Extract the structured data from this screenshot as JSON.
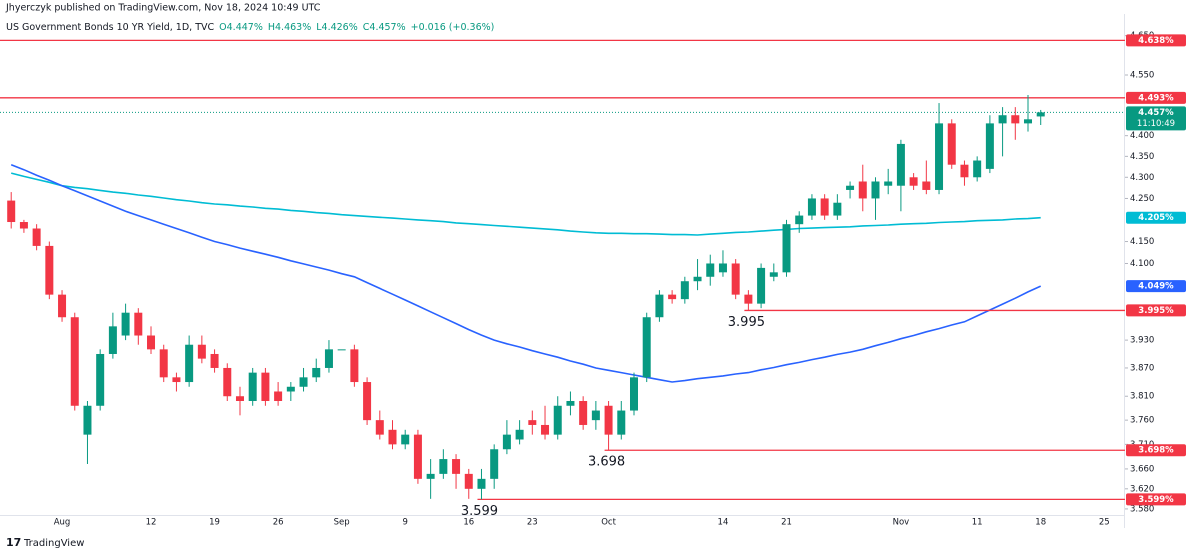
{
  "header": {
    "publisher": "Jhyerczyk published on TradingView.com, Nov 18, 2024 10:49 UTC",
    "symbol": "US Government Bonds 10 YR Yield, 1D, TVC",
    "ohlc_text": [
      "O4.447%",
      "H4.463%",
      "L4.426%",
      "C4.457%",
      "+0.016 (+0.36%)"
    ]
  },
  "footer": {
    "brand": "TradingView"
  },
  "chart_data": {
    "type": "candlestick",
    "log_scale": true,
    "grid": false,
    "up_color": "#089981",
    "down_color": "#f23645",
    "categories": [
      null,
      null,
      null,
      null,
      "Aug",
      null,
      null,
      null,
      null,
      null,
      null,
      "12",
      null,
      null,
      null,
      null,
      "19",
      null,
      null,
      null,
      null,
      "26",
      null,
      null,
      null,
      null,
      "Sep",
      null,
      null,
      null,
      null,
      "9",
      null,
      null,
      null,
      null,
      "16",
      null,
      null,
      null,
      null,
      "23",
      null,
      null,
      null,
      null,
      null,
      "Oct",
      null,
      null,
      null,
      null,
      null,
      null,
      null,
      null,
      "14",
      null,
      null,
      null,
      null,
      "21",
      null,
      null,
      null,
      null,
      null,
      null,
      null,
      null,
      "Nov",
      null,
      null,
      null,
      null,
      null,
      "11",
      null,
      null,
      null,
      null,
      "18",
      null,
      null,
      null,
      null,
      "25"
    ],
    "open": [
      4.245,
      4.195,
      4.18,
      4.14,
      4.03,
      3.98,
      3.73,
      3.79,
      3.9,
      3.94,
      3.99,
      3.94,
      3.91,
      3.85,
      3.84,
      3.92,
      3.9,
      3.87,
      3.81,
      3.8,
      3.86,
      3.82,
      3.82,
      3.83,
      3.85,
      3.87,
      3.91,
      3.91,
      3.84,
      3.76,
      3.74,
      3.71,
      3.73,
      3.64,
      3.65,
      3.68,
      3.65,
      3.62,
      3.64,
      3.7,
      3.72,
      3.76,
      3.75,
      3.73,
      3.79,
      3.8,
      3.76,
      3.79,
      3.73,
      3.78,
      3.85,
      3.98,
      4.03,
      4.02,
      4.06,
      4.07,
      4.08,
      4.1,
      4.03,
      4.01,
      4.07,
      4.08,
      4.19,
      4.21,
      4.25,
      4.21,
      4.27,
      4.29,
      4.25,
      4.28,
      4.28,
      4.3,
      4.29,
      4.27,
      4.43,
      4.33,
      4.3,
      4.32,
      4.43,
      4.45,
      4.43,
      4.447,
      null,
      null,
      null,
      null,
      null
    ],
    "high": [
      4.265,
      4.2,
      4.19,
      4.15,
      4.04,
      3.99,
      3.8,
      3.91,
      3.99,
      4.01,
      4.0,
      3.96,
      3.92,
      3.86,
      3.94,
      3.94,
      3.91,
      3.88,
      3.83,
      3.87,
      3.87,
      3.84,
      3.84,
      3.87,
      3.89,
      3.93,
      3.91,
      3.92,
      3.85,
      3.78,
      3.76,
      3.74,
      3.74,
      3.68,
      3.7,
      3.69,
      3.66,
      3.66,
      3.71,
      3.76,
      3.76,
      3.78,
      3.79,
      3.81,
      3.82,
      3.81,
      3.8,
      3.8,
      3.8,
      3.86,
      3.99,
      4.04,
      4.04,
      4.07,
      4.11,
      4.12,
      4.13,
      4.11,
      4.04,
      4.1,
      4.1,
      4.2,
      4.22,
      4.26,
      4.26,
      4.26,
      4.29,
      4.33,
      4.3,
      4.32,
      4.39,
      4.31,
      4.34,
      4.48,
      4.44,
      4.34,
      4.35,
      4.45,
      4.47,
      4.47,
      4.5,
      4.463,
      null,
      null,
      null,
      null,
      null
    ],
    "low": [
      4.18,
      4.17,
      4.13,
      4.02,
      3.97,
      3.78,
      3.67,
      3.78,
      3.89,
      3.93,
      3.92,
      3.9,
      3.84,
      3.82,
      3.83,
      3.88,
      3.86,
      3.8,
      3.77,
      3.79,
      3.79,
      3.79,
      3.8,
      3.82,
      3.84,
      3.86,
      3.91,
      3.83,
      3.75,
      3.72,
      3.7,
      3.7,
      3.63,
      3.6,
      3.64,
      3.62,
      3.6,
      3.599,
      3.62,
      3.69,
      3.71,
      3.73,
      3.72,
      3.72,
      3.77,
      3.74,
      3.74,
      3.698,
      3.72,
      3.77,
      3.84,
      3.97,
      4.01,
      4.01,
      4.04,
      4.05,
      4.07,
      4.02,
      3.995,
      4.0,
      4.06,
      4.07,
      4.17,
      4.2,
      4.2,
      4.2,
      4.25,
      4.22,
      4.2,
      4.26,
      4.22,
      4.27,
      4.26,
      4.26,
      4.32,
      4.28,
      4.29,
      4.31,
      4.35,
      4.39,
      4.41,
      4.426,
      null,
      null,
      null,
      null,
      null
    ],
    "close": [
      4.195,
      4.18,
      4.14,
      4.03,
      3.98,
      3.79,
      3.79,
      3.9,
      3.96,
      3.99,
      3.94,
      3.91,
      3.85,
      3.84,
      3.92,
      3.89,
      3.87,
      3.81,
      3.8,
      3.86,
      3.8,
      3.8,
      3.83,
      3.85,
      3.87,
      3.91,
      3.91,
      3.84,
      3.76,
      3.73,
      3.71,
      3.73,
      3.64,
      3.65,
      3.68,
      3.65,
      3.62,
      3.64,
      3.7,
      3.73,
      3.74,
      3.75,
      3.73,
      3.79,
      3.8,
      3.75,
      3.78,
      3.73,
      3.78,
      3.85,
      3.98,
      4.03,
      4.02,
      4.06,
      4.07,
      4.1,
      4.1,
      4.03,
      4.01,
      4.09,
      4.08,
      4.19,
      4.21,
      4.25,
      4.21,
      4.24,
      4.28,
      4.25,
      4.29,
      4.29,
      4.38,
      4.28,
      4.27,
      4.43,
      4.33,
      4.3,
      4.34,
      4.43,
      4.45,
      4.43,
      4.44,
      4.457,
      null,
      null,
      null,
      null,
      null
    ],
    "moving_averages": [
      {
        "color": "#00bcd4",
        "end_label": {
          "value": 4.205,
          "label": "4.205%"
        },
        "values": [
          4.31,
          4.302,
          4.295,
          4.288,
          4.28,
          4.276,
          4.273,
          4.269,
          4.265,
          4.262,
          4.258,
          4.255,
          4.251,
          4.247,
          4.244,
          4.24,
          4.237,
          4.235,
          4.232,
          4.23,
          4.227,
          4.225,
          4.222,
          4.22,
          4.217,
          4.215,
          4.212,
          4.21,
          4.208,
          4.206,
          4.204,
          4.202,
          4.2,
          4.198,
          4.196,
          4.193,
          4.191,
          4.189,
          4.187,
          4.185,
          4.183,
          4.181,
          4.179,
          4.177,
          4.174,
          4.172,
          4.17,
          4.169,
          4.169,
          4.168,
          4.168,
          4.167,
          4.166,
          4.166,
          4.165,
          4.167,
          4.169,
          4.171,
          4.172,
          4.174,
          4.176,
          4.178,
          4.18,
          4.181,
          4.182,
          4.183,
          4.184,
          4.186,
          4.187,
          4.188,
          4.19,
          4.191,
          4.192,
          4.194,
          4.195,
          4.196,
          4.198,
          4.199,
          4.2,
          4.202,
          4.203,
          4.205,
          null,
          null,
          null,
          null,
          null
        ]
      },
      {
        "color": "#2962ff",
        "end_label": {
          "value": 4.049,
          "label": "4.049%"
        },
        "values": [
          4.33,
          4.318,
          4.305,
          4.293,
          4.28,
          4.268,
          4.256,
          4.244,
          4.232,
          4.22,
          4.21,
          4.2,
          4.19,
          4.18,
          4.17,
          4.16,
          4.15,
          4.143,
          4.135,
          4.128,
          4.121,
          4.114,
          4.106,
          4.099,
          4.092,
          4.085,
          4.077,
          4.07,
          4.057,
          4.044,
          4.031,
          4.018,
          4.005,
          3.992,
          3.979,
          3.966,
          3.953,
          3.941,
          3.93,
          3.922,
          3.915,
          3.907,
          3.9,
          3.893,
          3.885,
          3.878,
          3.87,
          3.865,
          3.86,
          3.855,
          3.85,
          3.845,
          3.84,
          3.843,
          3.847,
          3.85,
          3.853,
          3.857,
          3.86,
          3.866,
          3.871,
          3.877,
          3.882,
          3.888,
          3.893,
          3.899,
          3.904,
          3.91,
          3.918,
          3.925,
          3.933,
          3.94,
          3.948,
          3.955,
          3.963,
          3.97,
          3.983,
          3.996,
          4.009,
          4.022,
          4.036,
          4.049,
          null,
          null,
          null,
          null,
          null
        ]
      }
    ],
    "levels": [
      {
        "value": 4.638,
        "label": "4.638%"
      },
      {
        "value": 4.493,
        "label": "4.493%"
      },
      {
        "value": 3.995,
        "label": "3.995%",
        "annotation": "3.995"
      },
      {
        "value": 3.698,
        "label": "3.698%",
        "annotation": "3.698"
      },
      {
        "value": 3.599,
        "label": "3.599%",
        "annotation": "3.599"
      }
    ],
    "price_tag": {
      "value": 4.457,
      "label": "4.457%",
      "countdown": "11:10:49"
    },
    "ylim": [
      3.568,
      4.706
    ],
    "yticks": [
      {
        "value": 4.65,
        "label": "4.650"
      },
      {
        "value": 4.55,
        "label": "4.550"
      },
      {
        "value": 4.4,
        "label": "4.400"
      },
      {
        "value": 4.35,
        "label": "4.350"
      },
      {
        "value": 4.3,
        "label": "4.300"
      },
      {
        "value": 4.25,
        "label": "4.250"
      },
      {
        "value": 4.15,
        "label": "4.150"
      },
      {
        "value": 4.1,
        "label": "4.100"
      },
      {
        "value": 3.93,
        "label": "3.930"
      },
      {
        "value": 3.87,
        "label": "3.870"
      },
      {
        "value": 3.81,
        "label": "3.810"
      },
      {
        "value": 3.76,
        "label": "3.760"
      },
      {
        "value": 3.71,
        "label": "3.710"
      },
      {
        "value": 3.66,
        "label": "3.660"
      },
      {
        "value": 3.62,
        "label": "3.620"
      },
      {
        "value": 3.58,
        "label": "3.580"
      }
    ]
  }
}
